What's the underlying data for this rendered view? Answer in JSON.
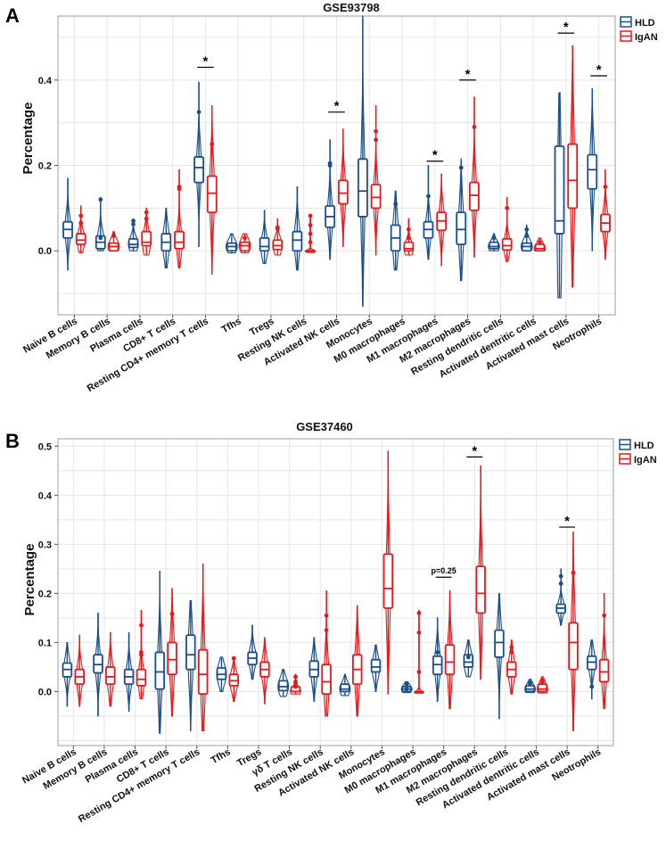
{
  "colors": {
    "HLD": "#1a4f8b",
    "IgAN": "#e31a1c"
  },
  "chart_data": [
    {
      "panel_label": "A",
      "type": "violin-box",
      "title": "GSE93798",
      "ylabel": "Percentage",
      "xlabel": "",
      "ylim": [
        -0.15,
        0.55
      ],
      "yticks": [
        0.0,
        0.2,
        0.4
      ],
      "ytick_labels": [
        "0.0",
        "0.2",
        "0.4"
      ],
      "legend": [
        "HLD",
        "IgAN"
      ],
      "legend_position": "top-right",
      "categories": [
        "Naive B cells",
        "Memory B cells",
        "Plasma cells",
        "CD8+ T cells",
        "Resting CD4+ memory T cells",
        "Tfhs",
        "Tregs",
        "Resting NK cells",
        "Activated NK cells",
        "Monocytes",
        "M0 macrophages",
        "M1 macrophages",
        "M2 macrophages",
        "Resting dendritic cells",
        "Activated dentritic cells",
        "Activated mast cells",
        "Neotrophils"
      ],
      "series": [
        {
          "name": "HLD",
          "stats": [
            {
              "min": -0.045,
              "q1": 0.03,
              "median": 0.05,
              "q3": 0.068,
              "max": 0.17,
              "outliers": []
            },
            {
              "min": 0.0,
              "q1": 0.005,
              "median": 0.02,
              "q3": 0.035,
              "max": 0.125,
              "outliers": [
                0.12,
                0.03
              ]
            },
            {
              "min": 0.0,
              "q1": 0.008,
              "median": 0.015,
              "q3": 0.028,
              "max": 0.075,
              "outliers": [
                0.062,
                0.07
              ]
            },
            {
              "min": -0.04,
              "q1": 0.0,
              "median": 0.02,
              "q3": 0.04,
              "max": 0.1,
              "outliers": []
            },
            {
              "min": 0.01,
              "q1": 0.16,
              "median": 0.195,
              "q3": 0.22,
              "max": 0.395,
              "outliers": [
                0.325
              ]
            },
            {
              "min": -0.005,
              "q1": 0.0,
              "median": 0.01,
              "q3": 0.018,
              "max": 0.04,
              "outliers": []
            },
            {
              "min": -0.03,
              "q1": 0.0,
              "median": 0.01,
              "q3": 0.03,
              "max": 0.095,
              "outliers": []
            },
            {
              "min": -0.045,
              "q1": 0.0,
              "median": 0.025,
              "q3": 0.045,
              "max": 0.15,
              "outliers": []
            },
            {
              "min": -0.02,
              "q1": 0.055,
              "median": 0.08,
              "q3": 0.105,
              "max": 0.26,
              "outliers": [
                0.2,
                0.205
              ]
            },
            {
              "min": -0.13,
              "q1": 0.08,
              "median": 0.14,
              "q3": 0.215,
              "max": 0.55,
              "outliers": []
            },
            {
              "min": -0.045,
              "q1": 0.0,
              "median": 0.03,
              "q3": 0.06,
              "max": 0.14,
              "outliers": [
                0.11
              ]
            },
            {
              "min": -0.02,
              "q1": 0.03,
              "median": 0.05,
              "q3": 0.068,
              "max": 0.2,
              "outliers": [
                0.128
              ]
            },
            {
              "min": -0.07,
              "q1": 0.015,
              "median": 0.05,
              "q3": 0.09,
              "max": 0.215,
              "outliers": [
                0.195
              ]
            },
            {
              "min": 0.0,
              "q1": 0.005,
              "median": 0.01,
              "q3": 0.02,
              "max": 0.04,
              "outliers": [
                0.03
              ]
            },
            {
              "min": 0.0,
              "q1": 0.0,
              "median": 0.01,
              "q3": 0.018,
              "max": 0.06,
              "outliers": [
                0.05,
                0.035
              ]
            },
            {
              "min": -0.11,
              "q1": 0.04,
              "median": 0.07,
              "q3": 0.245,
              "max": 0.37,
              "outliers": []
            },
            {
              "min": 0.0,
              "q1": 0.145,
              "median": 0.19,
              "q3": 0.225,
              "max": 0.38,
              "outliers": []
            }
          ]
        },
        {
          "name": "IgAN",
          "stats": [
            {
              "min": -0.005,
              "q1": 0.015,
              "median": 0.025,
              "q3": 0.04,
              "max": 0.105,
              "outliers": [
                0.082,
                0.065
              ]
            },
            {
              "min": 0.0,
              "q1": 0.0,
              "median": 0.01,
              "q3": 0.018,
              "max": 0.045,
              "outliers": [
                0.035
              ]
            },
            {
              "min": -0.01,
              "q1": 0.012,
              "median": 0.02,
              "q3": 0.045,
              "max": 0.1,
              "outliers": [
                0.09,
                0.075
              ]
            },
            {
              "min": -0.04,
              "q1": 0.005,
              "median": 0.02,
              "q3": 0.045,
              "max": 0.19,
              "outliers": [
                0.145,
                0.15
              ]
            },
            {
              "min": -0.055,
              "q1": 0.09,
              "median": 0.135,
              "q3": 0.175,
              "max": 0.34,
              "outliers": [
                0.25
              ]
            },
            {
              "min": -0.005,
              "q1": 0.0,
              "median": 0.012,
              "q3": 0.02,
              "max": 0.04,
              "outliers": [
                0.03
              ]
            },
            {
              "min": -0.01,
              "q1": 0.003,
              "median": 0.012,
              "q3": 0.025,
              "max": 0.075,
              "outliers": [
                0.055,
                0.052
              ]
            },
            {
              "min": 0.0,
              "q1": 0.0,
              "median": 0.0,
              "q3": 0.0,
              "max": 0.08,
              "outliers": [
                0.082,
                0.06,
                0.04,
                0.02
              ]
            },
            {
              "min": 0.01,
              "q1": 0.11,
              "median": 0.135,
              "q3": 0.165,
              "max": 0.285,
              "outliers": []
            },
            {
              "min": -0.01,
              "q1": 0.1,
              "median": 0.125,
              "q3": 0.155,
              "max": 0.34,
              "outliers": [
                0.28,
                0.26
              ]
            },
            {
              "min": -0.01,
              "q1": 0.0,
              "median": 0.005,
              "q3": 0.02,
              "max": 0.075,
              "outliers": [
                0.05,
                0.03
              ]
            },
            {
              "min": -0.035,
              "q1": 0.048,
              "median": 0.07,
              "q3": 0.09,
              "max": 0.18,
              "outliers": []
            },
            {
              "min": -0.015,
              "q1": 0.095,
              "median": 0.13,
              "q3": 0.16,
              "max": 0.36,
              "outliers": [
                0.29
              ]
            },
            {
              "min": -0.025,
              "q1": 0.002,
              "median": 0.012,
              "q3": 0.028,
              "max": 0.125,
              "outliers": [
                0.1
              ]
            },
            {
              "min": 0.0,
              "q1": 0.0,
              "median": 0.005,
              "q3": 0.015,
              "max": 0.03,
              "outliers": [
                0.02
              ]
            },
            {
              "min": -0.085,
              "q1": 0.1,
              "median": 0.165,
              "q3": 0.25,
              "max": 0.48,
              "outliers": []
            },
            {
              "min": -0.02,
              "q1": 0.045,
              "median": 0.065,
              "q3": 0.085,
              "max": 0.19,
              "outliers": [
                0.15
              ]
            }
          ]
        }
      ],
      "annotations": [
        {
          "category": "Resting CD4+ memory T cells",
          "y": 0.43,
          "text": "*"
        },
        {
          "category": "Activated NK cells",
          "y": 0.325,
          "text": "*"
        },
        {
          "category": "M1 macrophages",
          "y": 0.21,
          "text": "*"
        },
        {
          "category": "M2 macrophages",
          "y": 0.4,
          "text": "*"
        },
        {
          "category": "Activated mast cells",
          "y": 0.51,
          "text": "*"
        },
        {
          "category": "Neotrophils",
          "y": 0.41,
          "text": "*"
        }
      ]
    },
    {
      "panel_label": "B",
      "type": "violin-box",
      "title": "GSE37460",
      "ylabel": "Percentage",
      "xlabel": "",
      "ylim": [
        -0.11,
        0.515
      ],
      "yticks": [
        0.0,
        0.1,
        0.2,
        0.3,
        0.4,
        0.5
      ],
      "ytick_labels": [
        "0.0",
        "0.1",
        "0.2",
        "0.3",
        "0.4",
        "0.5"
      ],
      "legend": [
        "HLD",
        "IgAN"
      ],
      "legend_position": "top-right",
      "categories": [
        "Naive B cells",
        "Memory B cells",
        "Plasma cells",
        "CD8+ T cells",
        "Resting CD4+ memory T cells",
        "Tfhs",
        "Tregs",
        "γδ T cells",
        "Resting NK cells",
        "Activated NK cells",
        "Monocytes",
        "M0 macrophages",
        "M1 macrophages",
        "M2 macrophages",
        "Resting dendritic cells",
        "Activated dentritic cells",
        "Activated mast cells",
        "Neotrophils"
      ],
      "series": [
        {
          "name": "HLD",
          "stats": [
            {
              "min": -0.03,
              "q1": 0.03,
              "median": 0.045,
              "q3": 0.058,
              "max": 0.1,
              "outliers": []
            },
            {
              "min": -0.05,
              "q1": 0.038,
              "median": 0.055,
              "q3": 0.075,
              "max": 0.16,
              "outliers": []
            },
            {
              "min": -0.04,
              "q1": 0.015,
              "median": 0.03,
              "q3": 0.045,
              "max": 0.12,
              "outliers": []
            },
            {
              "min": -0.085,
              "q1": 0.005,
              "median": 0.04,
              "q3": 0.08,
              "max": 0.245,
              "outliers": []
            },
            {
              "min": -0.08,
              "q1": 0.045,
              "median": 0.075,
              "q3": 0.115,
              "max": 0.185,
              "outliers": []
            },
            {
              "min": 0.0,
              "q1": 0.025,
              "median": 0.035,
              "q3": 0.048,
              "max": 0.07,
              "outliers": []
            },
            {
              "min": 0.025,
              "q1": 0.055,
              "median": 0.068,
              "q3": 0.08,
              "max": 0.135,
              "outliers": []
            },
            {
              "min": -0.01,
              "q1": 0.002,
              "median": 0.01,
              "q3": 0.022,
              "max": 0.045,
              "outliers": []
            },
            {
              "min": -0.02,
              "q1": 0.03,
              "median": 0.045,
              "q3": 0.062,
              "max": 0.11,
              "outliers": []
            },
            {
              "min": -0.008,
              "q1": 0.0,
              "median": 0.005,
              "q3": 0.015,
              "max": 0.035,
              "outliers": []
            },
            {
              "min": 0.0,
              "q1": 0.04,
              "median": 0.05,
              "q3": 0.065,
              "max": 0.095,
              "outliers": []
            },
            {
              "min": -0.002,
              "q1": 0.0,
              "median": 0.005,
              "q3": 0.01,
              "max": 0.02,
              "outliers": [
                0.015,
                0.005
              ]
            },
            {
              "min": -0.02,
              "q1": 0.035,
              "median": 0.055,
              "q3": 0.072,
              "max": 0.15,
              "outliers": [
                0.08
              ]
            },
            {
              "min": 0.03,
              "q1": 0.05,
              "median": 0.06,
              "q3": 0.075,
              "max": 0.105,
              "outliers": [
                0.07
              ]
            },
            {
              "min": -0.055,
              "q1": 0.07,
              "median": 0.1,
              "q3": 0.125,
              "max": 0.2,
              "outliers": []
            },
            {
              "min": -0.002,
              "q1": 0.0,
              "median": 0.005,
              "q3": 0.012,
              "max": 0.025,
              "outliers": [
                0.018,
                0.015
              ]
            },
            {
              "min": 0.135,
              "q1": 0.16,
              "median": 0.17,
              "q3": 0.178,
              "max": 0.25,
              "outliers": [
                0.235,
                0.22
              ]
            },
            {
              "min": -0.015,
              "q1": 0.045,
              "median": 0.06,
              "q3": 0.072,
              "max": 0.105,
              "outliers": [
                0.01
              ]
            }
          ]
        },
        {
          "name": "IgAN",
          "stats": [
            {
              "min": -0.03,
              "q1": 0.015,
              "median": 0.03,
              "q3": 0.045,
              "max": 0.115,
              "outliers": []
            },
            {
              "min": -0.03,
              "q1": 0.015,
              "median": 0.03,
              "q3": 0.05,
              "max": 0.12,
              "outliers": []
            },
            {
              "min": -0.015,
              "q1": 0.012,
              "median": 0.025,
              "q3": 0.045,
              "max": 0.165,
              "outliers": [
                0.135,
                0.08,
                0.075
              ]
            },
            {
              "min": -0.05,
              "q1": 0.035,
              "median": 0.065,
              "q3": 0.1,
              "max": 0.21,
              "outliers": [
                0.158
              ]
            },
            {
              "min": -0.08,
              "q1": -0.005,
              "median": 0.035,
              "q3": 0.085,
              "max": 0.26,
              "outliers": []
            },
            {
              "min": -0.02,
              "q1": 0.012,
              "median": 0.022,
              "q3": 0.035,
              "max": 0.07,
              "outliers": [
                0.068
              ]
            },
            {
              "min": -0.025,
              "q1": 0.03,
              "median": 0.045,
              "q3": 0.06,
              "max": 0.11,
              "outliers": []
            },
            {
              "min": -0.005,
              "q1": 0.0,
              "median": 0.0,
              "q3": 0.01,
              "max": 0.035,
              "outliers": [
                0.03,
                0.02,
                0.015,
                0.01
              ]
            },
            {
              "min": -0.05,
              "q1": -0.005,
              "median": 0.02,
              "q3": 0.055,
              "max": 0.205,
              "outliers": [
                0.155,
                0.125
              ]
            },
            {
              "min": -0.05,
              "q1": 0.015,
              "median": 0.045,
              "q3": 0.075,
              "max": 0.175,
              "outliers": []
            },
            {
              "min": -0.005,
              "q1": 0.17,
              "median": 0.21,
              "q3": 0.28,
              "max": 0.49,
              "outliers": []
            },
            {
              "min": -0.002,
              "q1": 0.0,
              "median": 0.0,
              "q3": 0.0,
              "max": 0.165,
              "outliers": [
                0.16,
                0.12,
                0.04
              ]
            },
            {
              "min": -0.035,
              "q1": 0.035,
              "median": 0.06,
              "q3": 0.095,
              "max": 0.205,
              "outliers": []
            },
            {
              "min": 0.025,
              "q1": 0.16,
              "median": 0.2,
              "q3": 0.255,
              "max": 0.46,
              "outliers": []
            },
            {
              "min": -0.005,
              "q1": 0.03,
              "median": 0.045,
              "q3": 0.06,
              "max": 0.105,
              "outliers": [
                0.09,
                0.08
              ]
            },
            {
              "min": -0.003,
              "q1": 0.0,
              "median": 0.005,
              "q3": 0.015,
              "max": 0.03,
              "outliers": [
                0.022,
                0.018
              ]
            },
            {
              "min": -0.08,
              "q1": 0.045,
              "median": 0.1,
              "q3": 0.14,
              "max": 0.325,
              "outliers": [
                0.242
              ]
            },
            {
              "min": -0.035,
              "q1": 0.02,
              "median": 0.04,
              "q3": 0.065,
              "max": 0.2,
              "outliers": [
                0.155
              ]
            }
          ]
        }
      ],
      "annotations": [
        {
          "category": "M1 macrophages",
          "y": 0.233,
          "text": "p=0.25"
        },
        {
          "category": "M2 macrophages",
          "y": 0.478,
          "text": "*"
        },
        {
          "category": "Activated mast cells",
          "y": 0.335,
          "text": "*"
        }
      ]
    }
  ]
}
